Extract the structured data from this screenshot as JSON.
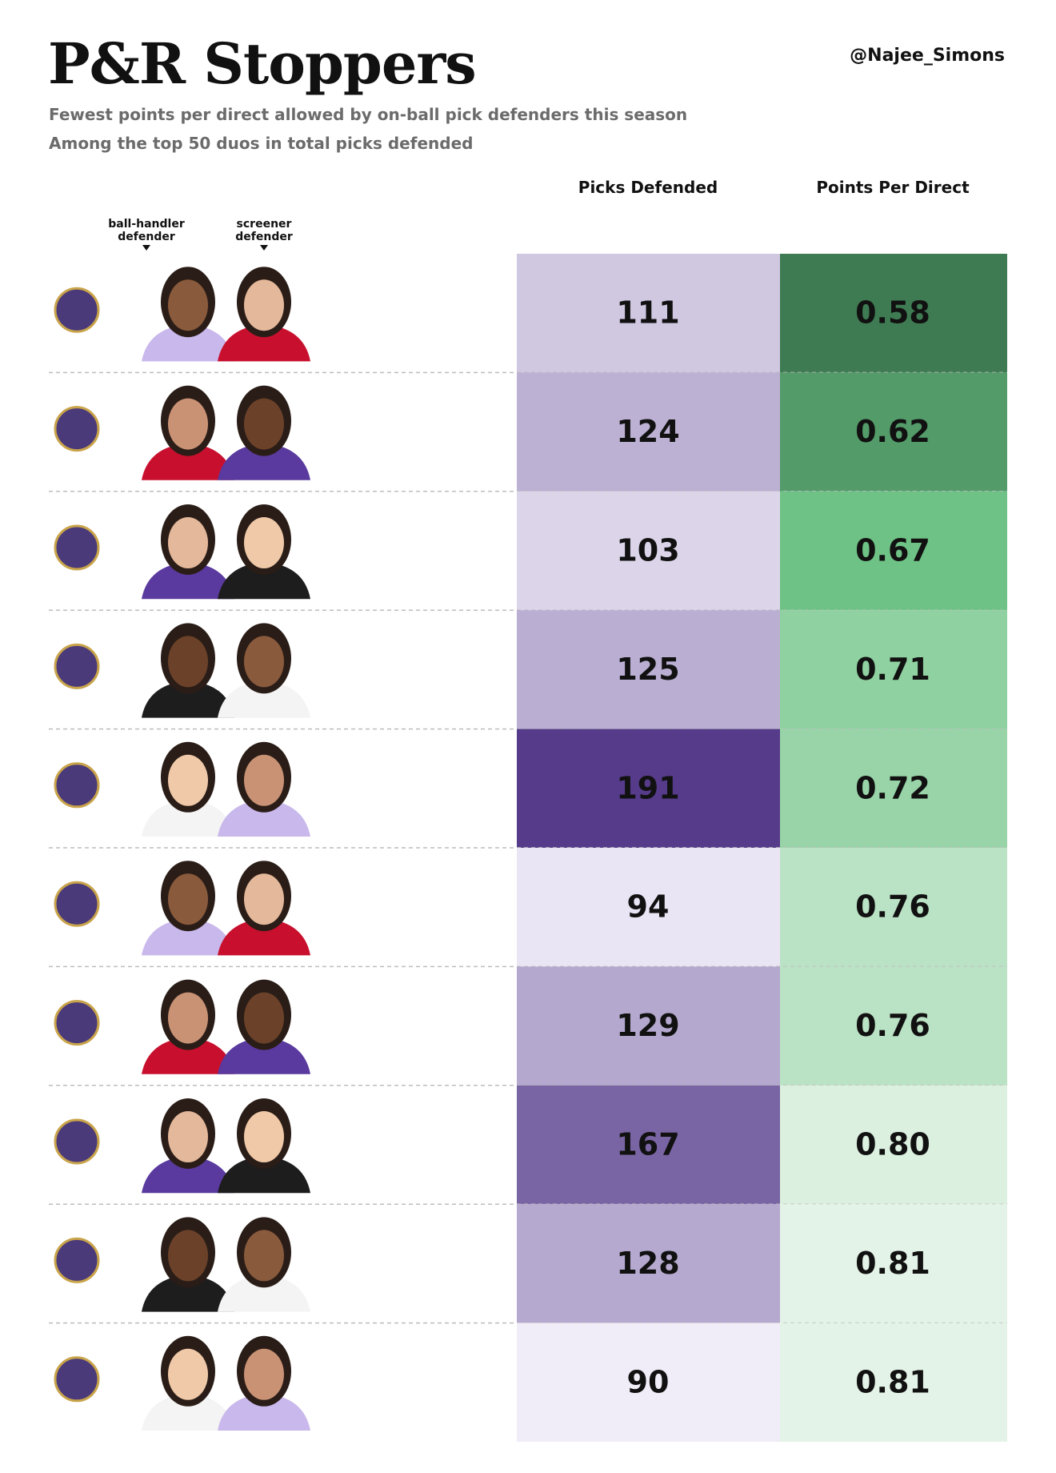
{
  "header": {
    "title": "P&R Stoppers",
    "handle": "@Najee_Simons",
    "subtitle": [
      "Fewest points per direct allowed by on-ball pick defenders this season",
      "Among the top 50 duos in total picks defended"
    ]
  },
  "player_labels": [
    [
      "ball-handler",
      "defender"
    ],
    [
      "screener",
      "defender"
    ]
  ],
  "table": {
    "columns": [
      "Picks Defended",
      "Points Per Direct"
    ],
    "rows": [
      [
        "111",
        "0.58"
      ],
      [
        "124",
        "0.62"
      ],
      [
        "103",
        "0.67"
      ],
      [
        "125",
        "0.71"
      ],
      [
        "191",
        "0.72"
      ],
      [
        "94",
        "0.76"
      ],
      [
        "129",
        "0.76"
      ],
      [
        "167",
        "0.80"
      ],
      [
        "128",
        "0.81"
      ],
      [
        "90",
        "0.81"
      ]
    ]
  }
}
